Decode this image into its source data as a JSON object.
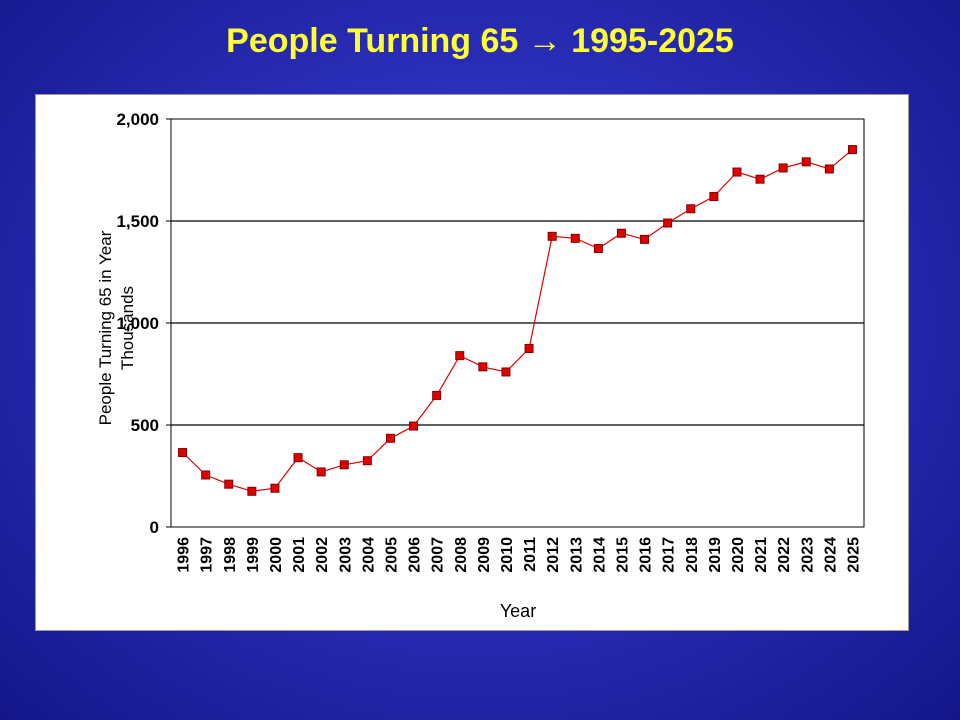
{
  "slide": {
    "title": "People Turning 65 → 1995-2025"
  },
  "chart_data": {
    "type": "line",
    "xlabel": "Year",
    "ylabel_lines": [
      "People Turning 65 in Year",
      "Thousands"
    ],
    "ylim": [
      0,
      2000
    ],
    "yticks": [
      0,
      500,
      1000,
      1500,
      2000
    ],
    "ytick_labels": [
      "0",
      "500",
      "1,000",
      "1,500",
      "2,000"
    ],
    "grid": "horizontal",
    "legend": "none",
    "colors": {
      "line": "#e00000",
      "marker_fill": "#e00000",
      "marker_edge": "#800000"
    },
    "categories": [
      "1996",
      "1997",
      "1998",
      "1999",
      "2000",
      "2001",
      "2002",
      "2003",
      "2004",
      "2005",
      "2006",
      "2007",
      "2008",
      "2009",
      "2010",
      "2011",
      "2012",
      "2013",
      "2014",
      "2015",
      "2016",
      "2017",
      "2018",
      "2019",
      "2020",
      "2021",
      "2022",
      "2023",
      "2024",
      "2025"
    ],
    "series": [
      {
        "values": [
          365,
          255,
          210,
          175,
          190,
          340,
          270,
          305,
          325,
          435,
          495,
          645,
          840,
          785,
          760,
          875,
          1425,
          1415,
          1365,
          1440,
          1410,
          1490,
          1560,
          1620,
          1740,
          1705,
          1760,
          1790,
          1755,
          1850
        ]
      }
    ]
  }
}
